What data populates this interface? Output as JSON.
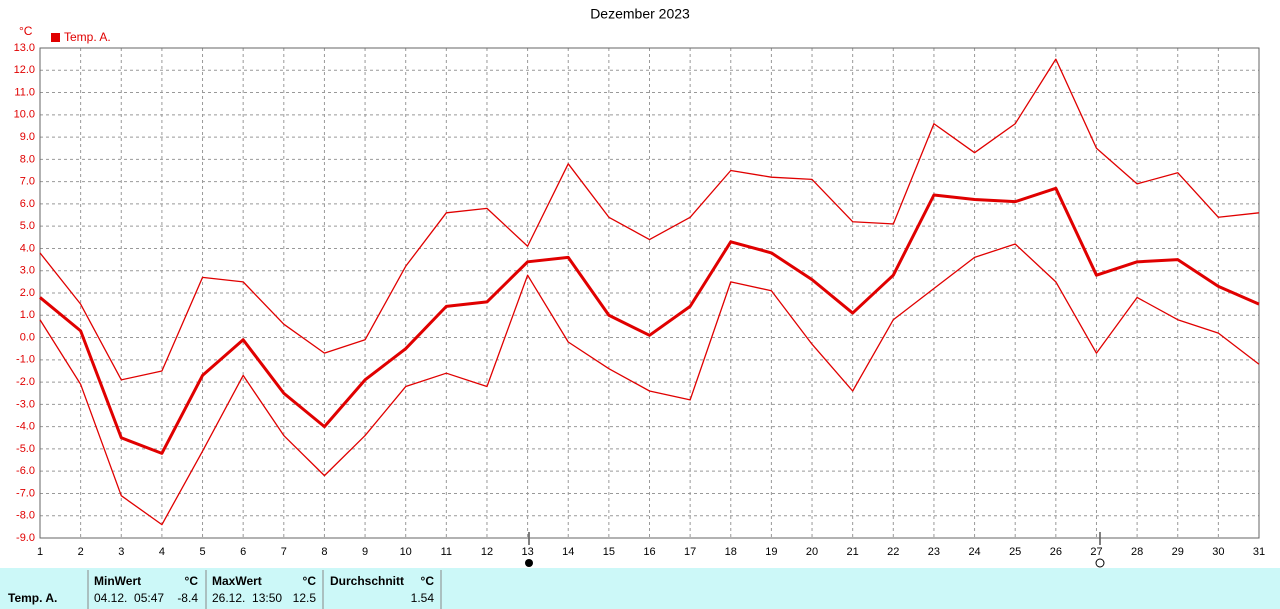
{
  "chart_data": {
    "type": "line",
    "title": "Dezember 2023",
    "y_unit": "°C",
    "legend": "Temp. A.",
    "legend_color": "#e00000",
    "x": [
      1,
      2,
      3,
      4,
      5,
      6,
      7,
      8,
      9,
      10,
      11,
      12,
      13,
      14,
      15,
      16,
      17,
      18,
      19,
      20,
      21,
      22,
      23,
      24,
      25,
      26,
      27,
      28,
      29,
      30,
      31
    ],
    "xlim": [
      1,
      31
    ],
    "xticks": [
      1,
      2,
      3,
      4,
      5,
      6,
      7,
      8,
      9,
      10,
      11,
      12,
      13,
      14,
      15,
      16,
      17,
      18,
      19,
      20,
      21,
      22,
      23,
      24,
      25,
      26,
      27,
      28,
      29,
      30,
      31
    ],
    "ylim": [
      -9,
      13
    ],
    "yticks": [
      {
        "value": -9,
        "label": "-9.0"
      },
      {
        "value": -8,
        "label": "-8.0"
      },
      {
        "value": -7,
        "label": "-7.0"
      },
      {
        "value": -6,
        "label": "-6.0"
      },
      {
        "value": -5,
        "label": "-5.0"
      },
      {
        "value": -4,
        "label": "-4.0"
      },
      {
        "value": -3,
        "label": "-3.0"
      },
      {
        "value": -2,
        "label": "-2.0"
      },
      {
        "value": -1,
        "label": "-1.0"
      },
      {
        "value": 0,
        "label": "0.0"
      },
      {
        "value": 1,
        "label": "1.0"
      },
      {
        "value": 2,
        "label": "2.0"
      },
      {
        "value": 3,
        "label": "3.0"
      },
      {
        "value": 4,
        "label": "4.0"
      },
      {
        "value": 5,
        "label": "5.0"
      },
      {
        "value": 6,
        "label": "6.0"
      },
      {
        "value": 7,
        "label": "7.0"
      },
      {
        "value": 8,
        "label": "8.0"
      },
      {
        "value": 9,
        "label": "9.0"
      },
      {
        "value": 10,
        "label": "10.0"
      },
      {
        "value": 11,
        "label": "11.0"
      },
      {
        "value": 12,
        "label": "12.0"
      },
      {
        "value": 13,
        "label": "13.0"
      }
    ],
    "grid": true,
    "series": [
      {
        "color": "#e00000",
        "width": 1.3,
        "values": [
          3.8,
          1.5,
          -1.9,
          -1.5,
          2.7,
          2.5,
          0.6,
          -0.7,
          -0.1,
          3.2,
          5.6,
          5.8,
          4.1,
          7.8,
          5.4,
          4.4,
          5.4,
          7.5,
          7.2,
          7.1,
          5.2,
          5.1,
          9.6,
          8.3,
          9.6,
          12.5,
          8.5,
          6.9,
          7.4,
          5.4,
          5.6
        ]
      },
      {
        "color": "#e00000",
        "width": 3,
        "values": [
          1.8,
          0.3,
          -4.5,
          -5.2,
          -1.7,
          -0.1,
          -2.5,
          -4.0,
          -1.9,
          -0.5,
          1.4,
          1.6,
          3.4,
          3.6,
          1.0,
          0.1,
          1.4,
          4.3,
          3.8,
          2.6,
          1.1,
          2.8,
          6.4,
          6.2,
          6.1,
          6.7,
          2.8,
          3.4,
          3.5,
          2.3,
          1.5
        ]
      },
      {
        "color": "#e00000",
        "width": 1.3,
        "values": [
          0.8,
          -2.1,
          -7.1,
          -8.4,
          -5.1,
          -1.7,
          -4.4,
          -6.2,
          -4.4,
          -2.2,
          -1.6,
          -2.2,
          2.8,
          -0.2,
          -1.4,
          -2.4,
          -2.8,
          2.5,
          2.1,
          -0.3,
          -2.4,
          0.8,
          2.2,
          3.6,
          4.2,
          2.5,
          -0.7,
          1.8,
          0.8,
          0.2,
          -1.2
        ]
      }
    ]
  },
  "stats": {
    "row_label": "Temp. A.",
    "min": {
      "header": "MinWert",
      "unit": "°C",
      "time": "04.12.  05:47",
      "value": -8.4
    },
    "max": {
      "header": "MaxWert",
      "unit": "°C",
      "time": "26.12.  13:50",
      "value": 12.5
    },
    "avg": {
      "header": "Durchschnitt",
      "unit": "°C",
      "value": 1.54
    }
  }
}
